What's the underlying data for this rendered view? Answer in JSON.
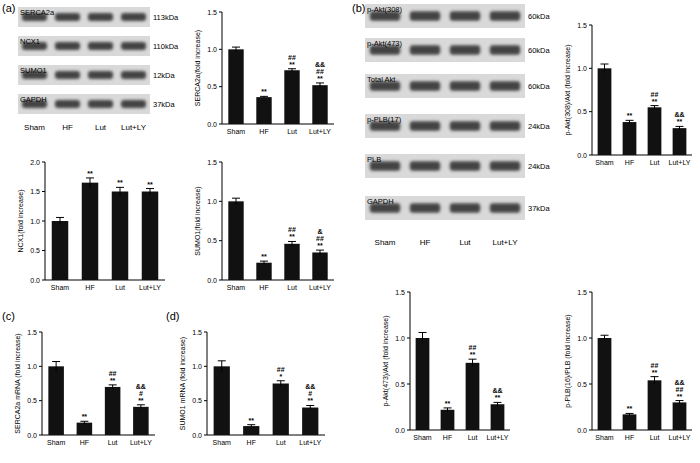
{
  "chart_data": [
    {
      "type": "bar",
      "y_label": "SERCA2a(fold increase)",
      "categories": [
        "Sham",
        "HF",
        "Lut",
        "Lut+LY"
      ],
      "values": [
        1.0,
        0.36,
        0.72,
        0.52
      ],
      "errors": [
        0.03,
        0.01,
        0.02,
        0.03
      ],
      "significance": [
        null,
        [
          "**"
        ],
        [
          "**",
          "##"
        ],
        [
          "**",
          "##",
          "&&"
        ]
      ],
      "color": "#111111",
      "ylim": [
        0,
        1.5
      ],
      "yticks": [
        {
          "value": 0,
          "label": "0.0"
        },
        {
          "value": 0.5,
          "label": "0.5"
        },
        {
          "value": 1,
          "label": "1.0"
        },
        {
          "value": 1.5,
          "label": "1.5"
        }
      ],
      "grid": false
    },
    {
      "type": "bar",
      "y_label": "NCX1(fold increase)",
      "categories": [
        "Sham",
        "HF",
        "Lut",
        "Lut+LY"
      ],
      "values": [
        1.0,
        1.65,
        1.5,
        1.5
      ],
      "errors": [
        0.06,
        0.08,
        0.07,
        0.05
      ],
      "significance": [
        null,
        [
          "**"
        ],
        [
          "**"
        ],
        [
          "**"
        ]
      ],
      "color": "#111111",
      "ylim": [
        0,
        2
      ],
      "yticks": [
        {
          "value": 0,
          "label": "0.0"
        },
        {
          "value": 0.5,
          "label": "0.5"
        },
        {
          "value": 1,
          "label": "1.0"
        },
        {
          "value": 1.5,
          "label": "1.5"
        },
        {
          "value": 2,
          "label": "2.0"
        }
      ],
      "grid": false
    },
    {
      "type": "bar",
      "y_label": "SUMO1(fold increase)",
      "categories": [
        "Sham",
        "HF",
        "Lut",
        "Lut+LY"
      ],
      "values": [
        1.0,
        0.22,
        0.46,
        0.35
      ],
      "errors": [
        0.04,
        0.02,
        0.03,
        0.03
      ],
      "significance": [
        null,
        [
          "**"
        ],
        [
          "**",
          "##"
        ],
        [
          "**",
          "##",
          "&"
        ]
      ],
      "color": "#111111",
      "ylim": [
        0,
        1.5
      ],
      "yticks": [
        {
          "value": 0,
          "label": "0.0"
        },
        {
          "value": 0.5,
          "label": "0.5"
        },
        {
          "value": 1,
          "label": "1.0"
        },
        {
          "value": 1.5,
          "label": "1.5"
        }
      ],
      "grid": false
    },
    {
      "type": "bar",
      "y_label": "p-Akt(308)/Akt (fold increase)",
      "categories": [
        "Sham",
        "HF",
        "Lut",
        "Lut+LY"
      ],
      "values": [
        1.0,
        0.38,
        0.55,
        0.31
      ],
      "errors": [
        0.05,
        0.02,
        0.02,
        0.02
      ],
      "significance": [
        null,
        [
          "**"
        ],
        [
          "**",
          "##"
        ],
        [
          "**",
          "&&"
        ]
      ],
      "color": "#111111",
      "ylim": [
        0,
        1.5
      ],
      "yticks": [
        {
          "value": 0,
          "label": "0.0"
        },
        {
          "value": 0.5,
          "label": "0.5"
        },
        {
          "value": 1,
          "label": "1.0"
        },
        {
          "value": 1.5,
          "label": "1.5"
        }
      ],
      "grid": false
    },
    {
      "type": "bar",
      "y_label": "p-Akt(473)/Akt (fold increase)",
      "categories": [
        "Sham",
        "HF",
        "Lut",
        "Lut+LY"
      ],
      "values": [
        1.0,
        0.22,
        0.73,
        0.28
      ],
      "errors": [
        0.06,
        0.02,
        0.04,
        0.02
      ],
      "significance": [
        null,
        [
          "**"
        ],
        [
          "**",
          "##"
        ],
        [
          "**",
          "&&"
        ]
      ],
      "color": "#111111",
      "ylim": [
        0,
        1.5
      ],
      "yticks": [
        {
          "value": 0,
          "label": "0.0"
        },
        {
          "value": 0.5,
          "label": "0.5"
        },
        {
          "value": 1,
          "label": "1.0"
        },
        {
          "value": 1.5,
          "label": "1.5"
        }
      ],
      "grid": false
    },
    {
      "type": "bar",
      "y_label": "p-PLB(16)/PLB (fold increase)",
      "categories": [
        "Sham",
        "HF",
        "Lut",
        "Lut+LY"
      ],
      "values": [
        1.0,
        0.17,
        0.54,
        0.3
      ],
      "errors": [
        0.03,
        0.01,
        0.04,
        0.02
      ],
      "significance": [
        null,
        [
          "**"
        ],
        [
          "**",
          "##"
        ],
        [
          "**",
          "##",
          "&&"
        ]
      ],
      "color": "#111111",
      "ylim": [
        0,
        1.5
      ],
      "yticks": [
        {
          "value": 0,
          "label": "0.0"
        },
        {
          "value": 0.5,
          "label": "0.5"
        },
        {
          "value": 1,
          "label": "1.0"
        },
        {
          "value": 1.5,
          "label": "1.5"
        }
      ],
      "grid": false
    },
    {
      "type": "bar",
      "y_label": "SERCA2a mRNA (fold increase)",
      "categories": [
        "Sham",
        "HF",
        "Lut",
        "Lut+LY"
      ],
      "values": [
        1.0,
        0.18,
        0.7,
        0.41
      ],
      "errors": [
        0.07,
        0.02,
        0.03,
        0.03
      ],
      "significance": [
        null,
        [
          "**"
        ],
        [
          "**",
          "##"
        ],
        [
          "**",
          "#",
          "&&"
        ]
      ],
      "color": "#111111",
      "ylim": [
        0,
        1.5
      ],
      "yticks": [
        {
          "value": 0,
          "label": "0.0"
        },
        {
          "value": 0.5,
          "label": "0.5"
        },
        {
          "value": 1,
          "label": "1.0"
        },
        {
          "value": 1.5,
          "label": "1.5"
        }
      ],
      "grid": false
    },
    {
      "type": "bar",
      "y_label": "SUMO1 mRNA (fold increase)",
      "categories": [
        "Sham",
        "HF",
        "Lut",
        "Lut+LY"
      ],
      "values": [
        1.0,
        0.13,
        0.75,
        0.4
      ],
      "errors": [
        0.08,
        0.02,
        0.04,
        0.03
      ],
      "significance": [
        null,
        [
          "**"
        ],
        [
          "*",
          "##"
        ],
        [
          "**",
          "#",
          "&&"
        ]
      ],
      "color": "#111111",
      "ylim": [
        0,
        1.5
      ],
      "yticks": [
        {
          "value": 0,
          "label": "0.0"
        },
        {
          "value": 0.5,
          "label": "0.5"
        },
        {
          "value": 1,
          "label": "1.0"
        },
        {
          "value": 1.5,
          "label": "1.5"
        }
      ],
      "grid": false
    }
  ],
  "blots": [
    {
      "rows": [
        {
          "label": "SERCA2a",
          "size": "113kDa"
        },
        {
          "label": "NCX1",
          "size": "110kDa"
        },
        {
          "label": "SUMO1",
          "size": "12kDa"
        },
        {
          "label": "GAPDH",
          "size": "37kDa"
        }
      ],
      "lanes": [
        "Sham",
        "HF",
        "Lut",
        "Lut+LY"
      ]
    },
    {
      "rows": [
        {
          "label": "p-Akt(308)",
          "size": "60kDa"
        },
        {
          "label": "p-Akt(473)",
          "size": "60kDa"
        },
        {
          "label": "Total Akt",
          "size": "60kDa"
        },
        {
          "label": "p-PLB(17)",
          "size": "24kDa"
        },
        {
          "label": "PLB",
          "size": "24kDa"
        },
        {
          "label": "GAPDH",
          "size": "37kDa"
        }
      ],
      "lanes": [
        "Sham",
        "HF",
        "Lut",
        "Lut+LY"
      ]
    }
  ],
  "panel_labels": [
    "(a)",
    "(b)",
    "(c)",
    "(d)"
  ]
}
